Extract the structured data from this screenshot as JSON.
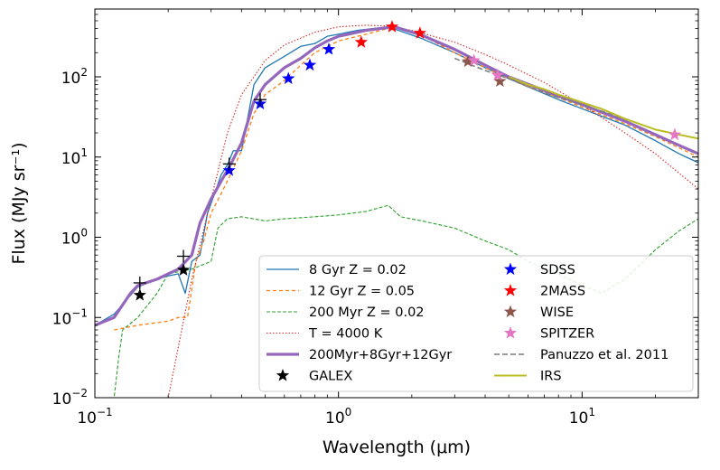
{
  "chart_data": {
    "type": "line",
    "xlabel": "Wavelength (μm)",
    "ylabel": "Flux (MJy sr⁻¹)",
    "xscale": "log",
    "yscale": "log",
    "xlim": [
      0.1,
      30
    ],
    "ylim": [
      0.01,
      700
    ],
    "grid": false,
    "legend_position": "lower-right, two columns",
    "x_ticks": [
      {
        "value": 0.1,
        "base": "10",
        "exp": "−1"
      },
      {
        "value": 1,
        "base": "10",
        "exp": "0"
      },
      {
        "value": 10,
        "base": "10",
        "exp": "1"
      }
    ],
    "y_ticks": [
      {
        "value": 0.01,
        "base": "10",
        "exp": "−2"
      },
      {
        "value": 0.1,
        "base": "10",
        "exp": "−1"
      },
      {
        "value": 1,
        "base": "10",
        "exp": "0"
      },
      {
        "value": 10,
        "base": "10",
        "exp": "1"
      },
      {
        "value": 100,
        "base": "10",
        "exp": "2"
      }
    ],
    "lines": [
      {
        "name": "8 Gyr Z = 0.02",
        "color": "#1f77b4",
        "width": 1.3,
        "dash": "",
        "points": [
          [
            0.1,
            0.08
          ],
          [
            0.12,
            0.11
          ],
          [
            0.15,
            0.24
          ],
          [
            0.18,
            0.3
          ],
          [
            0.2,
            0.33
          ],
          [
            0.22,
            0.35
          ],
          [
            0.235,
            0.2
          ],
          [
            0.25,
            0.5
          ],
          [
            0.27,
            0.6
          ],
          [
            0.29,
            2.0
          ],
          [
            0.31,
            3.5
          ],
          [
            0.33,
            6
          ],
          [
            0.35,
            8
          ],
          [
            0.37,
            12
          ],
          [
            0.4,
            12
          ],
          [
            0.45,
            80
          ],
          [
            0.5,
            130
          ],
          [
            0.6,
            180
          ],
          [
            0.7,
            240
          ],
          [
            0.8,
            260
          ],
          [
            0.9,
            320
          ],
          [
            1.0,
            340
          ],
          [
            1.2,
            380
          ],
          [
            1.6,
            420
          ],
          [
            2.2,
            300
          ],
          [
            3.0,
            200
          ],
          [
            4.0,
            130
          ],
          [
            5.0,
            95
          ],
          [
            8.0,
            52
          ],
          [
            10,
            40
          ],
          [
            15,
            25
          ],
          [
            20,
            16
          ],
          [
            25,
            11
          ],
          [
            30,
            8.5
          ]
        ]
      },
      {
        "name": "12 Gyr Z = 0.05",
        "color": "#ff7f0e",
        "width": 1.3,
        "dash": "4,3",
        "points": [
          [
            0.12,
            0.07
          ],
          [
            0.15,
            0.08
          ],
          [
            0.2,
            0.09
          ],
          [
            0.22,
            0.1
          ],
          [
            0.24,
            0.1
          ],
          [
            0.26,
            0.5
          ],
          [
            0.28,
            0.9
          ],
          [
            0.3,
            2.0
          ],
          [
            0.33,
            3.5
          ],
          [
            0.36,
            6
          ],
          [
            0.4,
            12
          ],
          [
            0.45,
            35
          ],
          [
            0.5,
            60
          ],
          [
            0.6,
            90
          ],
          [
            0.7,
            140
          ],
          [
            0.8,
            200
          ],
          [
            1.0,
            280
          ],
          [
            1.3,
            340
          ],
          [
            1.7,
            420
          ],
          [
            2.2,
            330
          ],
          [
            3.0,
            200
          ],
          [
            4.0,
            130
          ],
          [
            5.0,
            95
          ],
          [
            8.0,
            55
          ],
          [
            10,
            42
          ],
          [
            15,
            26
          ],
          [
            20,
            18
          ],
          [
            25,
            13
          ],
          [
            30,
            10
          ]
        ]
      },
      {
        "name": "200 Myr Z = 0.02",
        "color": "#2ca02c",
        "width": 1.1,
        "dash": "4,2",
        "points": [
          [
            0.11,
            0.01
          ],
          [
            0.12,
            0.01
          ],
          [
            0.125,
            0.03
          ],
          [
            0.13,
            0.07
          ],
          [
            0.15,
            0.1
          ],
          [
            0.18,
            0.2
          ],
          [
            0.2,
            0.35
          ],
          [
            0.25,
            0.4
          ],
          [
            0.3,
            0.5
          ],
          [
            0.32,
            1.3
          ],
          [
            0.35,
            1.7
          ],
          [
            0.4,
            1.8
          ],
          [
            0.5,
            1.6
          ],
          [
            0.6,
            1.7
          ],
          [
            0.8,
            1.8
          ],
          [
            1.0,
            1.9
          ],
          [
            1.3,
            2.1
          ],
          [
            1.6,
            2.5
          ],
          [
            1.8,
            1.8
          ],
          [
            2.2,
            1.6
          ],
          [
            3.0,
            1.3
          ],
          [
            4.0,
            0.9
          ],
          [
            5.0,
            0.7
          ],
          [
            6.0,
            0.5
          ],
          [
            8.0,
            0.35
          ],
          [
            10,
            0.25
          ],
          [
            12,
            0.2
          ],
          [
            15,
            0.3
          ],
          [
            20,
            0.7
          ],
          [
            25,
            1.2
          ],
          [
            30,
            1.7
          ]
        ]
      },
      {
        "name": "T = 4000 K",
        "color": "#d62728",
        "width": 1.1,
        "dash": "1.5,2",
        "points": [
          [
            0.2,
            0.01
          ],
          [
            0.25,
            0.3
          ],
          [
            0.3,
            3
          ],
          [
            0.35,
            20
          ],
          [
            0.4,
            60
          ],
          [
            0.5,
            160
          ],
          [
            0.6,
            250
          ],
          [
            0.8,
            360
          ],
          [
            1.0,
            420
          ],
          [
            1.3,
            440
          ],
          [
            1.6,
            430
          ],
          [
            2.0,
            380
          ],
          [
            3.0,
            270
          ],
          [
            4.0,
            190
          ],
          [
            5.0,
            140
          ],
          [
            7.0,
            85
          ],
          [
            10,
            45
          ],
          [
            15,
            20
          ],
          [
            20,
            11
          ],
          [
            30,
            4
          ]
        ]
      },
      {
        "name": "200Myr+8Gyr+12Gyr",
        "color": "#9467bd",
        "width": 3.2,
        "dash": "",
        "points": [
          [
            0.1,
            0.08
          ],
          [
            0.12,
            0.1
          ],
          [
            0.14,
            0.2
          ],
          [
            0.15,
            0.25
          ],
          [
            0.18,
            0.3
          ],
          [
            0.2,
            0.35
          ],
          [
            0.22,
            0.4
          ],
          [
            0.25,
            0.6
          ],
          [
            0.27,
            1.5
          ],
          [
            0.3,
            3.0
          ],
          [
            0.33,
            5
          ],
          [
            0.36,
            8
          ],
          [
            0.4,
            15
          ],
          [
            0.45,
            50
          ],
          [
            0.5,
            80
          ],
          [
            0.6,
            130
          ],
          [
            0.7,
            170
          ],
          [
            0.8,
            230
          ],
          [
            0.9,
            280
          ],
          [
            1.0,
            320
          ],
          [
            1.3,
            380
          ],
          [
            1.7,
            420
          ],
          [
            2.2,
            330
          ],
          [
            3.0,
            220
          ],
          [
            4.0,
            140
          ],
          [
            5.0,
            100
          ],
          [
            8.0,
            58
          ],
          [
            10,
            45
          ],
          [
            15,
            28
          ],
          [
            20,
            19
          ],
          [
            25,
            14
          ],
          [
            30,
            11
          ]
        ]
      },
      {
        "name": "Panuzzo et al. 2011",
        "color": "#7f7f7f",
        "width": 1.6,
        "dash": "6,3",
        "points": [
          [
            3.0,
            170
          ],
          [
            4.0,
            120
          ],
          [
            5.0,
            95
          ],
          [
            6.0,
            75
          ],
          [
            8.0,
            55
          ],
          [
            10,
            45
          ],
          [
            15,
            30
          ],
          [
            20,
            22
          ],
          [
            25,
            19
          ],
          [
            30,
            17
          ]
        ]
      },
      {
        "name": "IRS",
        "color": "#bcbd22",
        "width": 2.0,
        "dash": "",
        "points": [
          [
            5.0,
            100
          ],
          [
            6.0,
            80
          ],
          [
            7.0,
            70
          ],
          [
            8.0,
            60
          ],
          [
            10,
            48
          ],
          [
            12,
            40
          ],
          [
            15,
            30
          ],
          [
            20,
            22
          ],
          [
            25,
            19
          ],
          [
            30,
            17
          ]
        ]
      }
    ],
    "photometry": [
      {
        "name": "GALEX",
        "color": "#000000",
        "points": [
          [
            0.153,
            0.19
          ],
          [
            0.231,
            0.39
          ]
        ]
      },
      {
        "name": "SDSS",
        "color": "#0000ff",
        "points": [
          [
            0.356,
            6.8
          ],
          [
            0.477,
            46
          ],
          [
            0.623,
            95
          ],
          [
            0.763,
            140
          ],
          [
            0.913,
            220
          ]
        ]
      },
      {
        "name": "2MASS",
        "color": "#ff0000",
        "points": [
          [
            1.24,
            270
          ],
          [
            1.66,
            420
          ],
          [
            2.16,
            350
          ]
        ]
      },
      {
        "name": "WISE",
        "color": "#8c564b",
        "points": [
          [
            3.4,
            155
          ],
          [
            4.6,
            88
          ]
        ]
      },
      {
        "name": "SPITZER",
        "color": "#e377c2",
        "points": [
          [
            3.6,
            160
          ],
          [
            4.5,
            105
          ],
          [
            24,
            19
          ]
        ]
      }
    ],
    "cross_markers": {
      "color": "#000000",
      "points": [
        [
          0.153,
          0.27
        ],
        [
          0.231,
          0.58
        ],
        [
          0.356,
          8.2
        ],
        [
          0.477,
          52
        ]
      ]
    }
  }
}
